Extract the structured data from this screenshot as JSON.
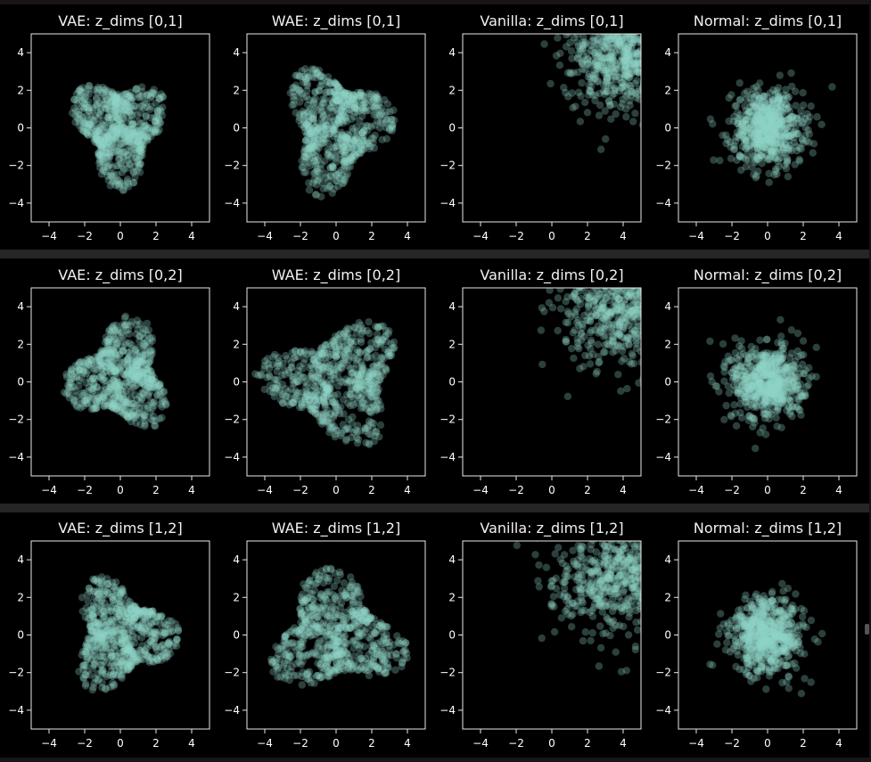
{
  "chart_data": {
    "type": "scatter",
    "layout": {
      "rows": 3,
      "cols": 4
    },
    "color": "#8dd3c7",
    "background": "#000000",
    "marker_alpha": 0.3,
    "xlim": [
      -5,
      5
    ],
    "ylim": [
      -5,
      5
    ],
    "xticks": [
      -4,
      -2,
      0,
      2,
      4
    ],
    "yticks": [
      -4,
      -2,
      0,
      2,
      4
    ],
    "tick_labels": [
      "−4",
      "−2",
      "0",
      "2",
      "4"
    ],
    "grid": false,
    "subplots": [
      {
        "title": "VAE: z_dims [0,1]",
        "model": "VAE",
        "dims": [
          0,
          1
        ],
        "distribution": {
          "center": [
            0.0,
            0.0
          ],
          "spread": [
            1.0,
            1.1
          ],
          "shape": "blob"
        }
      },
      {
        "title": "WAE: z_dims [0,1]",
        "model": "WAE",
        "dims": [
          0,
          1
        ],
        "distribution": {
          "center": [
            0.0,
            0.0
          ],
          "spread": [
            1.1,
            1.25
          ],
          "shape": "blob"
        }
      },
      {
        "title": "Vanilla: z_dims [0,1]",
        "model": "Vanilla",
        "dims": [
          0,
          1
        ],
        "distribution": {
          "center": [
            4.0,
            4.0
          ],
          "spread": [
            1.6,
            1.6
          ],
          "shape": "corner"
        }
      },
      {
        "title": "Normal: z_dims [0,1]",
        "model": "Normal",
        "dims": [
          0,
          1
        ],
        "distribution": {
          "center": [
            0.0,
            0.0
          ],
          "spread": [
            1.0,
            1.0
          ],
          "shape": "gaussian"
        }
      },
      {
        "title": "VAE: z_dims [0,2]",
        "model": "VAE",
        "dims": [
          0,
          2
        ],
        "distribution": {
          "center": [
            0.0,
            0.3
          ],
          "spread": [
            1.1,
            1.1
          ],
          "shape": "blob"
        }
      },
      {
        "title": "WAE: z_dims [0,2]",
        "model": "WAE",
        "dims": [
          0,
          2
        ],
        "distribution": {
          "center": [
            0.0,
            0.0
          ],
          "spread": [
            1.5,
            1.2
          ],
          "shape": "blob"
        }
      },
      {
        "title": "Vanilla: z_dims [0,2]",
        "model": "Vanilla",
        "dims": [
          0,
          2
        ],
        "distribution": {
          "center": [
            4.0,
            4.2
          ],
          "spread": [
            1.8,
            1.8
          ],
          "shape": "corner"
        }
      },
      {
        "title": "Normal: z_dims [0,2]",
        "model": "Normal",
        "dims": [
          0,
          2
        ],
        "distribution": {
          "center": [
            0.0,
            0.0
          ],
          "spread": [
            1.0,
            1.0
          ],
          "shape": "gaussian"
        }
      },
      {
        "title": "VAE: z_dims [1,2]",
        "model": "VAE",
        "dims": [
          1,
          2
        ],
        "distribution": {
          "center": [
            0.0,
            0.0
          ],
          "spread": [
            1.1,
            1.1
          ],
          "shape": "blob"
        }
      },
      {
        "title": "WAE: z_dims [1,2]",
        "model": "WAE",
        "dims": [
          1,
          2
        ],
        "distribution": {
          "center": [
            0.0,
            0.0
          ],
          "spread": [
            1.4,
            1.2
          ],
          "shape": "blob"
        }
      },
      {
        "title": "Vanilla: z_dims [1,2]",
        "model": "Vanilla",
        "dims": [
          1,
          2
        ],
        "distribution": {
          "center": [
            4.0,
            3.0
          ],
          "spread": [
            2.0,
            1.5
          ],
          "shape": "corner"
        }
      },
      {
        "title": "Normal: z_dims [1,2]",
        "model": "Normal",
        "dims": [
          1,
          2
        ],
        "distribution": {
          "center": [
            0.0,
            0.0
          ],
          "spread": [
            1.0,
            1.0
          ],
          "shape": "gaussian"
        }
      }
    ]
  }
}
